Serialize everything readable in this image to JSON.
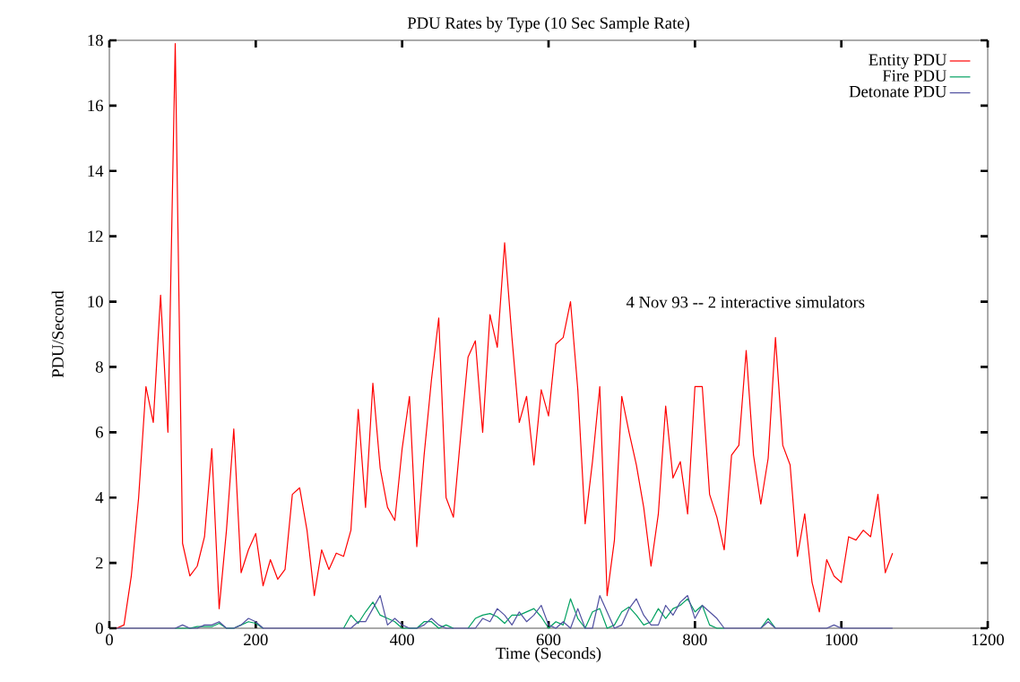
{
  "chart_data": {
    "type": "line",
    "title": "PDU Rates by Type (10 Sec Sample Rate)",
    "xlabel": "Time (Seconds)",
    "ylabel": "PDU/Second",
    "annotations": [
      "4 Nov 93 -- 2 interactive simulators"
    ],
    "xlim": [
      0,
      1200
    ],
    "ylim": [
      0,
      18
    ],
    "xticks": [
      0,
      200,
      400,
      600,
      800,
      1000,
      1200
    ],
    "yticks": [
      0,
      2,
      4,
      6,
      8,
      10,
      12,
      14,
      16,
      18
    ],
    "legend": "top right",
    "x": [
      10,
      20,
      30,
      40,
      50,
      60,
      70,
      80,
      90,
      100,
      110,
      120,
      130,
      140,
      150,
      160,
      170,
      180,
      190,
      200,
      210,
      220,
      230,
      240,
      250,
      260,
      270,
      280,
      290,
      300,
      310,
      320,
      330,
      340,
      350,
      360,
      370,
      380,
      390,
      400,
      410,
      420,
      430,
      440,
      450,
      460,
      470,
      480,
      490,
      500,
      510,
      520,
      530,
      540,
      550,
      560,
      570,
      580,
      590,
      600,
      610,
      620,
      630,
      640,
      650,
      660,
      670,
      680,
      690,
      700,
      710,
      720,
      730,
      740,
      750,
      760,
      770,
      780,
      790,
      800,
      810,
      820,
      830,
      840,
      850,
      860,
      870,
      880,
      890,
      900,
      910,
      920,
      930,
      940,
      950,
      960,
      970,
      980,
      990,
      1000,
      1010,
      1020,
      1030,
      1040,
      1050,
      1060,
      1070
    ],
    "series": [
      {
        "name": "Entity PDU",
        "color": "#ff0000",
        "values": [
          0,
          0.1,
          1.6,
          4,
          7.4,
          6.3,
          10.2,
          6.0,
          17.9,
          2.6,
          1.6,
          1.9,
          2.8,
          5.5,
          0.6,
          3.0,
          6.1,
          1.7,
          2.4,
          2.9,
          1.3,
          2.1,
          1.5,
          1.8,
          4.1,
          4.3,
          3.0,
          1.0,
          2.4,
          1.8,
          2.3,
          2.2,
          3.0,
          6.7,
          3.7,
          7.5,
          4.9,
          3.7,
          3.3,
          5.5,
          7.1,
          2.5,
          5.3,
          7.6,
          9.5,
          4.0,
          3.4,
          5.9,
          8.3,
          8.8,
          6.0,
          9.6,
          8.6,
          11.8,
          8.9,
          6.3,
          7.1,
          5.0,
          7.3,
          6.5,
          8.7,
          8.9,
          10.0,
          7.3,
          3.2,
          5.1,
          7.4,
          1.0,
          2.7,
          7.1,
          6.0,
          5.0,
          3.7,
          1.9,
          3.5,
          6.8,
          4.6,
          5.1,
          3.5,
          7.4,
          7.4,
          4.1,
          3.4,
          2.4,
          5.3,
          5.6,
          8.5,
          5.3,
          3.8,
          5.2,
          8.9,
          5.6,
          5.0,
          2.2,
          3.5,
          1.4,
          0.5,
          2.1,
          1.6,
          1.4,
          2.8,
          2.7,
          3.0,
          2.8,
          4.1,
          1.7,
          2.3
        ]
      },
      {
        "name": "Fire PDU",
        "color": "#00a060",
        "values": [
          null,
          null,
          null,
          null,
          null,
          null,
          null,
          null,
          0,
          0,
          0,
          0.05,
          0.05,
          0.05,
          0.15,
          0,
          0,
          0.1,
          0.2,
          0.15,
          0,
          null,
          null,
          null,
          null,
          null,
          null,
          null,
          null,
          null,
          null,
          0,
          0.4,
          0.15,
          0.5,
          0.8,
          0.4,
          0.3,
          0.2,
          0,
          0,
          0,
          0.2,
          0.2,
          0,
          0.1,
          0,
          null,
          0,
          0.3,
          0.4,
          0.45,
          0.35,
          0.15,
          0.4,
          0.4,
          0.5,
          0.6,
          0.35,
          0,
          0.2,
          0.1,
          0.9,
          0.3,
          0,
          0.5,
          0.6,
          0,
          0.1,
          0.5,
          0.65,
          0.4,
          0.1,
          0.2,
          0.6,
          0.3,
          0.6,
          0.7,
          0.9,
          0.5,
          0.7,
          0.1,
          0,
          0,
          null,
          null,
          null,
          null,
          0,
          0.3,
          0,
          null,
          null,
          null,
          null,
          null,
          null,
          null,
          null,
          null,
          null,
          null,
          null,
          null,
          null,
          null,
          null
        ]
      },
      {
        "name": "Detonate PDU",
        "color": "#5050a0",
        "values": [
          0,
          0,
          0,
          0,
          0,
          0,
          0,
          0,
          0,
          0.1,
          0,
          0,
          0.1,
          0.1,
          0.2,
          0,
          0,
          0.1,
          0.3,
          0.2,
          0,
          0,
          0,
          0,
          0,
          0,
          0,
          0,
          0,
          0,
          0,
          0,
          0,
          0.2,
          0.2,
          0.6,
          1.0,
          0.1,
          0.3,
          0.1,
          0,
          0,
          0.1,
          0.3,
          0.1,
          0,
          0,
          0,
          0,
          0,
          0.3,
          0.2,
          0.6,
          0.4,
          0.1,
          0.5,
          0.2,
          0.4,
          0.7,
          0.1,
          0,
          0.2,
          0,
          0.6,
          0,
          0,
          1.0,
          0.5,
          0,
          0.1,
          0.6,
          0.9,
          0.4,
          0.1,
          0.1,
          0.7,
          0.4,
          0.8,
          1.0,
          0.3,
          0.7,
          0.5,
          0.3,
          0,
          0,
          0,
          0,
          0,
          0,
          0.2,
          0,
          0,
          0,
          0,
          0,
          0,
          0,
          0,
          0.1,
          0,
          0,
          0,
          0,
          0,
          0,
          0,
          0
        ]
      }
    ]
  }
}
